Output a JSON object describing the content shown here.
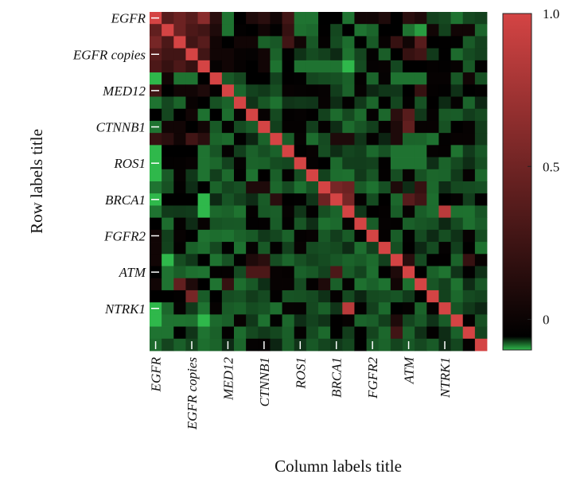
{
  "chart_data": {
    "type": "heatmap",
    "xlabel": "Column labels title",
    "ylabel": "Row labels title",
    "row_tick_labels": [
      {
        "label": "EGFR",
        "index": 0
      },
      {
        "label": "EGFR copies",
        "index": 3
      },
      {
        "label": "MED12",
        "index": 6
      },
      {
        "label": "CTNNB1",
        "index": 9
      },
      {
        "label": "ROS1",
        "index": 12
      },
      {
        "label": "BRCA1",
        "index": 15
      },
      {
        "label": "FGFR2",
        "index": 18
      },
      {
        "label": "ATM",
        "index": 21
      },
      {
        "label": "NTRK1",
        "index": 24
      }
    ],
    "col_tick_labels": [
      {
        "label": "EGFR",
        "index": 0
      },
      {
        "label": "EGFR copies",
        "index": 3
      },
      {
        "label": "MED12",
        "index": 6
      },
      {
        "label": "CTNNB1",
        "index": 9
      },
      {
        "label": "ROS1",
        "index": 12
      },
      {
        "label": "BRCA1",
        "index": 15
      },
      {
        "label": "FGFR2",
        "index": 18
      },
      {
        "label": "ATM",
        "index": 21
      },
      {
        "label": "NTRK1",
        "index": 24
      }
    ],
    "colorbar": {
      "min": -0.1,
      "max": 1.0,
      "ticks": [
        {
          "value": 1.0,
          "label": "1.0"
        },
        {
          "value": 0.5,
          "label": "0.5"
        },
        {
          "value": 0,
          "label": "0"
        }
      ],
      "colors": {
        "low": "#2fb84b",
        "mid": "#000000",
        "high": "#d44444"
      }
    },
    "values": [
      [
        1.0,
        0.35,
        0.45,
        0.35,
        0.6,
        0.15,
        -0.05,
        0.0,
        0.1,
        0.15,
        0.05,
        0.25,
        -0.05,
        -0.05,
        0.0,
        0.0,
        -0.05,
        0.05,
        0.05,
        0.1,
        0.0,
        0.15,
        0.1,
        0.02,
        0.02,
        -0.05,
        0.02,
        0.02
      ],
      [
        0.4,
        1.0,
        0.45,
        0.3,
        0.25,
        0.1,
        -0.05,
        0.02,
        0.0,
        0.05,
        0.02,
        0.2,
        0.02,
        0.02,
        0.02,
        -0.02,
        0.0,
        -0.05,
        0.02,
        0.02,
        0.0,
        -0.05,
        -0.08,
        0.05,
        0.02,
        0.05,
        0.05,
        0.02
      ],
      [
        0.5,
        0.3,
        1.0,
        0.25,
        0.35,
        0.05,
        0.0,
        0.05,
        0.05,
        0.02,
        0.02,
        0.25,
        0.05,
        0.02,
        0.02,
        0.02,
        0.02,
        0.02,
        0.02,
        0.02,
        0.2,
        0.05,
        0.35,
        0.0,
        0.02,
        0.02,
        0.02,
        0.02
      ],
      [
        0.35,
        0.25,
        0.25,
        1.0,
        0.25,
        0.05,
        0.05,
        0.02,
        0.02,
        0.05,
        0.02,
        0.02,
        0.02,
        0.02,
        0.02,
        0.02,
        0.02,
        0.02,
        0.02,
        0.02,
        0.0,
        0.2,
        0.25,
        0.02,
        0.02,
        0.02,
        0.02,
        0.02
      ],
      [
        0.3,
        0.2,
        0.3,
        0.2,
        1.0,
        0.02,
        0.05,
        0.02,
        0.0,
        0.05,
        0.02,
        0.02,
        -0.05,
        -0.05,
        -0.05,
        -0.05,
        -0.1,
        0.02,
        0.02,
        0.02,
        0.02,
        0.0,
        0.0,
        0.02,
        0.02,
        0.02,
        0.02,
        0.02
      ],
      [
        -0.1,
        0.05,
        -0.05,
        -0.05,
        0.0,
        1.0,
        0.02,
        0.02,
        0.0,
        0.0,
        0.02,
        0.02,
        0.02,
        0.02,
        0.02,
        0.02,
        0.02,
        0.02,
        0.02,
        0.02,
        -0.05,
        -0.05,
        -0.05,
        0.02,
        0.02,
        0.02,
        0.05,
        0.02
      ],
      [
        0.25,
        0.0,
        0.05,
        0.05,
        0.1,
        0.02,
        1.0,
        0.02,
        0.02,
        0.02,
        0.02,
        0.02,
        0.02,
        0.02,
        0.02,
        0.02,
        0.02,
        0.02,
        0.02,
        0.02,
        0.02,
        0.0,
        0.2,
        0.02,
        0.02,
        0.02,
        0.0,
        0.02
      ],
      [
        -0.05,
        0.02,
        0.02,
        0.02,
        0.0,
        0.02,
        0.02,
        1.0,
        0.02,
        0.02,
        0.02,
        0.02,
        0.02,
        0.02,
        0.02,
        0.02,
        0.02,
        0.02,
        0.02,
        0.02,
        0.02,
        0.02,
        0.02,
        0.02,
        0.02,
        0.02,
        0.02,
        0.02
      ],
      [
        0.0,
        0.02,
        0.0,
        0.05,
        0.02,
        0.0,
        0.02,
        0.02,
        1.0,
        0.02,
        0.02,
        0.02,
        0.02,
        0.02,
        0.02,
        0.02,
        0.02,
        0.02,
        0.02,
        0.02,
        0.15,
        0.35,
        0.02,
        0.02,
        0.02,
        0.02,
        0.02,
        0.02
      ],
      [
        -0.05,
        0.05,
        0.05,
        0.0,
        0.05,
        0.02,
        0.02,
        0.02,
        0.02,
        1.0,
        0.02,
        0.02,
        0.02,
        0.02,
        0.02,
        0.02,
        0.02,
        0.02,
        0.02,
        0.02,
        0.1,
        0.4,
        0.02,
        0.02,
        0.02,
        0.02,
        0.02,
        0.02
      ],
      [
        0.2,
        0.15,
        0.05,
        0.25,
        0.15,
        0.02,
        0.02,
        0.02,
        0.02,
        0.02,
        1.0,
        0.02,
        0.02,
        0.02,
        0.02,
        0.1,
        0.1,
        0.02,
        0.02,
        0.02,
        0.1,
        0.02,
        0.02,
        0.02,
        0.02,
        0.02,
        0.02,
        0.02
      ],
      [
        -0.1,
        0.0,
        0.0,
        0.0,
        -0.05,
        0.02,
        0.02,
        0.02,
        0.02,
        0.02,
        0.02,
        1.0,
        0.02,
        0.02,
        0.02,
        0.02,
        0.02,
        0.02,
        0.02,
        0.02,
        -0.05,
        -0.05,
        -0.05,
        0.02,
        0.02,
        0.02,
        0.02,
        0.02
      ],
      [
        -0.15,
        0.02,
        0.02,
        0.02,
        -0.05,
        0.02,
        0.02,
        0.02,
        0.02,
        0.02,
        0.02,
        0.02,
        1.0,
        0.02,
        0.02,
        0.02,
        0.02,
        0.02,
        0.02,
        0.02,
        -0.05,
        -0.05,
        -0.05,
        0.02,
        0.02,
        0.02,
        0.02,
        0.02
      ],
      [
        -0.1,
        0.02,
        0.02,
        0.02,
        -0.05,
        0.02,
        0.02,
        0.02,
        0.02,
        0.02,
        0.02,
        0.02,
        0.02,
        1.0,
        0.02,
        0.02,
        0.02,
        0.02,
        0.02,
        0.02,
        0.02,
        0.02,
        0.02,
        0.02,
        0.02,
        0.02,
        0.02,
        0.02
      ],
      [
        -0.05,
        0.02,
        0.02,
        0.02,
        0.0,
        0.02,
        0.02,
        0.02,
        0.1,
        0.1,
        0.02,
        0.02,
        0.02,
        0.02,
        1.0,
        0.5,
        0.45,
        0.02,
        0.02,
        0.02,
        0.1,
        0.02,
        0.2,
        0.02,
        0.02,
        0.02,
        0.02,
        0.02
      ],
      [
        -0.1,
        0.0,
        0.0,
        0.0,
        -0.15,
        0.02,
        0.02,
        0.02,
        0.02,
        0.02,
        0.15,
        0.02,
        0.02,
        0.02,
        0.45,
        1.0,
        0.5,
        0.02,
        0.02,
        0.02,
        0.02,
        0.35,
        0.25,
        0.02,
        0.0,
        0.02,
        0.02,
        0.02
      ],
      [
        -0.05,
        0.02,
        0.02,
        0.02,
        -0.1,
        0.02,
        0.02,
        0.02,
        0.02,
        0.02,
        0.02,
        0.02,
        0.02,
        0.02,
        0.02,
        0.02,
        1.0,
        0.02,
        0.02,
        0.02,
        0.02,
        0.02,
        0.02,
        0.02,
        0.85,
        0.02,
        0.02,
        0.02
      ],
      [
        0.0,
        0.02,
        0.02,
        0.02,
        0.02,
        0.02,
        0.02,
        0.02,
        0.02,
        0.02,
        0.02,
        0.02,
        0.02,
        0.02,
        0.02,
        0.02,
        0.02,
        1.0,
        0.02,
        0.02,
        0.02,
        0.02,
        0.02,
        0.02,
        0.02,
        0.02,
        0.02,
        0.02
      ],
      [
        0.05,
        0.02,
        0.02,
        0.0,
        -0.05,
        0.02,
        0.02,
        0.02,
        0.02,
        0.02,
        0.02,
        0.02,
        0.02,
        0.02,
        0.02,
        0.02,
        0.02,
        0.02,
        1.0,
        0.02,
        0.02,
        0.02,
        0.02,
        0.02,
        0.02,
        0.02,
        0.02,
        0.02
      ],
      [
        0.05,
        0.02,
        0.02,
        0.02,
        0.02,
        0.02,
        0.02,
        0.02,
        0.02,
        0.02,
        0.02,
        0.02,
        0.02,
        0.02,
        0.02,
        0.02,
        0.02,
        0.02,
        0.02,
        1.0,
        0.02,
        0.02,
        0.02,
        0.02,
        0.02,
        0.02,
        0.02,
        0.02
      ],
      [
        0.05,
        -0.15,
        0.02,
        0.02,
        0.0,
        -0.05,
        0.02,
        0.02,
        0.1,
        0.15,
        0.02,
        0.02,
        0.02,
        0.02,
        0.02,
        0.02,
        0.02,
        0.02,
        0.02,
        0.02,
        1.0,
        0.15,
        0.02,
        0.02,
        0.02,
        0.02,
        0.2,
        0.02
      ],
      [
        0.0,
        -0.05,
        0.02,
        0.02,
        -0.05,
        0.02,
        0.02,
        0.02,
        0.3,
        0.3,
        0.02,
        0.02,
        0.02,
        0.02,
        0.02,
        0.3,
        0.02,
        0.02,
        0.02,
        0.02,
        0.1,
        1.0,
        0.02,
        0.02,
        0.02,
        0.02,
        0.02,
        0.02
      ],
      [
        0.05,
        -0.05,
        0.4,
        0.1,
        0.0,
        -0.05,
        0.2,
        0.02,
        0.02,
        0.02,
        0.02,
        0.02,
        0.02,
        0.02,
        0.1,
        0.02,
        0.02,
        0.02,
        0.02,
        0.02,
        0.05,
        0.02,
        1.0,
        0.02,
        0.02,
        0.02,
        0.02,
        0.02
      ],
      [
        0.0,
        0.0,
        0.02,
        0.5,
        0.02,
        0.0,
        0.02,
        0.02,
        0.02,
        0.02,
        0.02,
        0.02,
        0.02,
        0.02,
        0.02,
        0.02,
        0.02,
        0.02,
        0.02,
        0.02,
        0.02,
        0.02,
        0.02,
        1.0,
        0.02,
        0.02,
        0.02,
        0.02
      ],
      [
        -0.1,
        0.02,
        0.02,
        0.02,
        -0.05,
        0.02,
        0.02,
        0.02,
        0.02,
        0.02,
        0.02,
        0.02,
        0.02,
        0.02,
        0.02,
        0.02,
        0.85,
        0.02,
        0.02,
        0.02,
        0.0,
        0.02,
        0.02,
        0.02,
        1.0,
        0.02,
        0.02,
        0.02
      ],
      [
        -0.1,
        -0.05,
        0.02,
        0.02,
        -0.1,
        0.02,
        0.02,
        0.02,
        0.02,
        0.02,
        0.02,
        0.02,
        0.02,
        0.02,
        0.02,
        0.02,
        0.02,
        0.02,
        0.02,
        0.02,
        0.1,
        0.02,
        0.02,
        0.02,
        0.02,
        1.0,
        0.02,
        0.02
      ],
      [
        -0.05,
        -0.05,
        0.0,
        0.02,
        -0.05,
        0.02,
        0.02,
        0.02,
        0.02,
        0.02,
        0.02,
        0.02,
        0.02,
        0.02,
        0.02,
        0.02,
        0.02,
        0.02,
        0.02,
        0.02,
        0.25,
        0.02,
        0.02,
        0.02,
        0.02,
        0.02,
        1.0,
        0.02
      ],
      [
        0.02,
        0.02,
        0.02,
        0.02,
        0.02,
        0.02,
        0.02,
        0.02,
        0.02,
        0.02,
        0.02,
        0.02,
        0.02,
        0.02,
        0.02,
        0.02,
        0.02,
        0.02,
        0.02,
        0.02,
        0.02,
        0.02,
        0.02,
        0.02,
        0.02,
        0.02,
        0.02,
        1.0
      ]
    ]
  }
}
